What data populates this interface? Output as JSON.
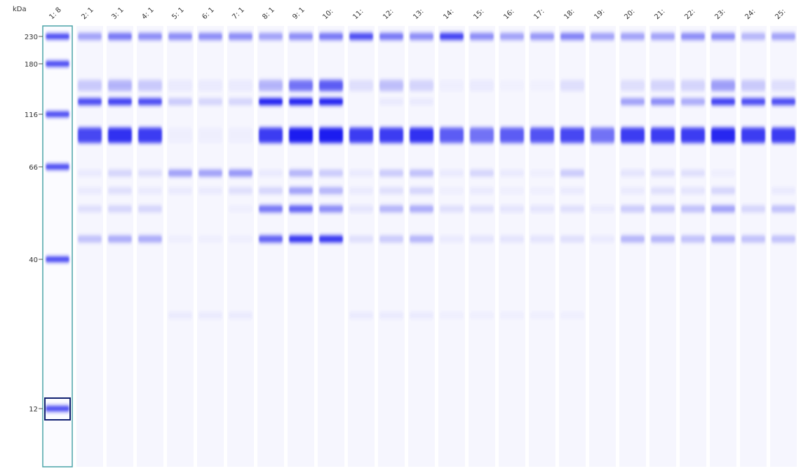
{
  "unit_label": "kDa",
  "markers": [
    230,
    180,
    116,
    66,
    40,
    12
  ],
  "lanes": [
    "1: 8",
    "2: 1",
    "3: 1",
    "4: 1",
    "5: 1",
    "6: 1",
    "7: 1",
    "8: 1",
    "9: 1",
    "10:",
    "11:",
    "12:",
    "13:",
    "14:",
    "15:",
    "16:",
    "17:",
    "18:",
    "19:",
    "20:",
    "21:",
    "22:",
    "23:",
    "24:",
    "25:"
  ]
}
